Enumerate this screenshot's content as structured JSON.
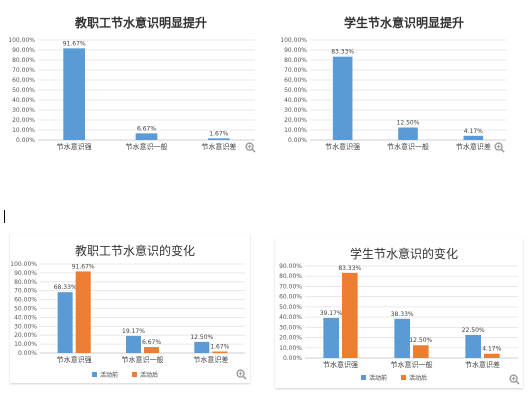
{
  "chart_data": [
    {
      "type": "bar",
      "title": "教职工节水意识明显提升",
      "categories": [
        "节水意识强",
        "节水意识一般",
        "节水意识差"
      ],
      "values": [
        91.67,
        6.67,
        1.67
      ],
      "data_labels": [
        "91.67%",
        "6.67%",
        "1.67%"
      ],
      "ylim": [
        0,
        100
      ],
      "yticks": [
        "0.00%",
        "10.00%",
        "20.00%",
        "30.00%",
        "40.00%",
        "50.00%",
        "60.00%",
        "70.00%",
        "80.00%",
        "90.00%",
        "100.00%"
      ],
      "grid": true,
      "color": "#5b9bd5"
    },
    {
      "type": "bar",
      "title": "学生节水意识明显提升",
      "categories": [
        "节水意识强",
        "节水意识一般",
        "节水意识差"
      ],
      "values": [
        83.33,
        12.5,
        4.17
      ],
      "data_labels": [
        "83.33%",
        "12.50%",
        "4.17%"
      ],
      "ylim": [
        0,
        100
      ],
      "yticks": [
        "0.00%",
        "10.00%",
        "20.00%",
        "30.00%",
        "40.00%",
        "50.00%",
        "60.00%",
        "70.00%",
        "80.00%",
        "90.00%",
        "100.00%"
      ],
      "grid": true,
      "color": "#5b9bd5"
    },
    {
      "type": "bar",
      "title": "教职工节水意识的变化",
      "categories": [
        "节水意识强",
        "节水意识一般",
        "节水意识差"
      ],
      "series": [
        {
          "name": "活动前",
          "values": [
            68.33,
            19.17,
            12.5
          ],
          "labels": [
            "68.33%",
            "19.17%",
            "12.50%"
          ],
          "color": "#5b9bd5"
        },
        {
          "name": "活动后",
          "values": [
            91.67,
            6.67,
            1.67
          ],
          "labels": [
            "91.67%",
            "6.67%",
            "1.67%"
          ],
          "color": "#ed7d31"
        }
      ],
      "ylim": [
        0,
        100
      ],
      "yticks": [
        "0.00%",
        "10.00%",
        "20.00%",
        "30.00%",
        "40.00%",
        "50.00%",
        "60.00%",
        "70.00%",
        "80.00%",
        "90.00%",
        "100.00%"
      ],
      "grid": true,
      "legend": "bottom"
    },
    {
      "type": "bar",
      "title": "学生节水意识的变化",
      "categories": [
        "节水意识强",
        "节水意识一般",
        "节水意识差"
      ],
      "series": [
        {
          "name": "活动前",
          "values": [
            39.17,
            38.33,
            22.5
          ],
          "labels": [
            "39.17%",
            "38.33%",
            "22.50%"
          ],
          "color": "#5b9bd5"
        },
        {
          "name": "活动后",
          "values": [
            83.33,
            12.5,
            4.17
          ],
          "labels": [
            "83.33%",
            "12.50%",
            "4.17%"
          ],
          "color": "#ed7d31"
        }
      ],
      "ylim": [
        0,
        90
      ],
      "yticks": [
        "0.00%",
        "10.00%",
        "20.00%",
        "30.00%",
        "40.00%",
        "50.00%",
        "60.00%",
        "70.00%",
        "80.00%",
        "90.00%"
      ],
      "grid": true,
      "legend": "bottom"
    }
  ],
  "icons": {
    "zoom": "zoom-in-icon"
  }
}
